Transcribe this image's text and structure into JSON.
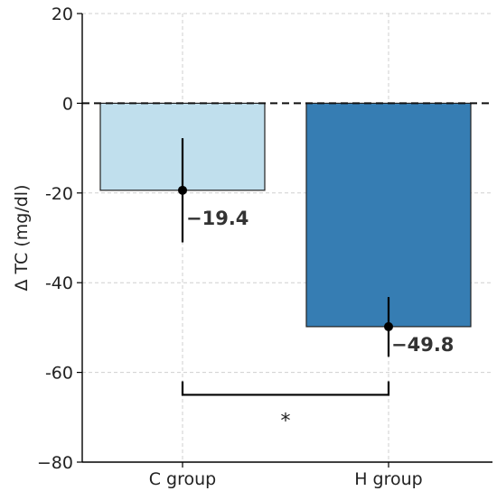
{
  "chart_data": {
    "type": "bar",
    "categories": [
      "C group",
      "H group"
    ],
    "values": [
      -19.4,
      -49.8
    ],
    "error_bars": [
      {
        "low": -31.0,
        "high": -7.8
      },
      {
        "low": -56.5,
        "high": -43.2
      }
    ],
    "data_labels": [
      "−19.4",
      "−49.8"
    ],
    "colors": [
      "#c0dfed",
      "#367db3"
    ],
    "ylabel": "Δ TC (mg/dl)",
    "ylim": [
      -80,
      20
    ],
    "yticks": [
      20,
      0,
      -20,
      -40,
      -60,
      -80
    ],
    "ytick_labels": [
      "20",
      "0",
      "-20",
      "-40",
      "-60",
      "−80"
    ],
    "grid": true,
    "zero_line": "dashed",
    "significance": {
      "between": [
        "C group",
        "H group"
      ],
      "label": "*",
      "y": -65
    }
  }
}
